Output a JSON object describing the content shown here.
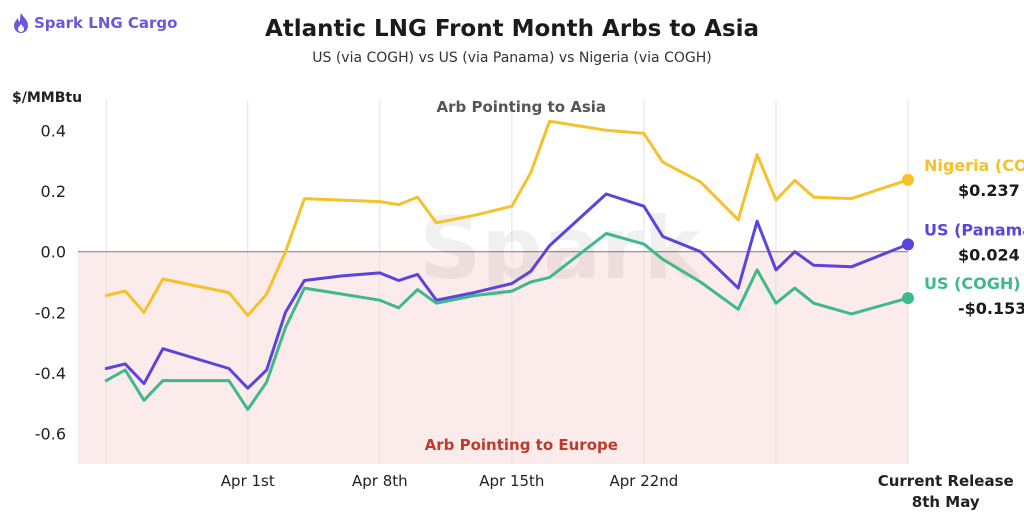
{
  "brand": {
    "name": "Spark LNG Cargo",
    "watermark": "Spark"
  },
  "chart_data": {
    "type": "line",
    "title": "Atlantic LNG Front Month Arbs to Asia",
    "subtitle": "US (via COGH) vs US (via Panama) vs Nigeria (via COGH)",
    "ylabel": "$/MMBtu",
    "ylim": [
      -0.7,
      0.5
    ],
    "yticks": [
      "0.4",
      "0.2",
      "0.0",
      "-0.2",
      "-0.4",
      "-0.6"
    ],
    "ytick_values": [
      0.4,
      0.2,
      0.0,
      -0.2,
      -0.4,
      -0.6
    ],
    "xlim": [
      -9,
      35
    ],
    "xtick_labels": [
      {
        "x": 0,
        "label": "Apr 1st"
      },
      {
        "x": 7,
        "label": "Apr 8th"
      },
      {
        "x": 14,
        "label": "Apr 15th"
      },
      {
        "x": 21,
        "label": "Apr 22nd"
      },
      {
        "x": 37,
        "label": "Current Release\n8th May"
      }
    ],
    "vgrid_x": [
      -7.5,
      0,
      7,
      14,
      21,
      28,
      35
    ],
    "grid": "vertical",
    "annotations": {
      "top": "Arb Pointing to Asia",
      "bottom": "Arb Pointing to Europe"
    },
    "series": [
      {
        "name": "Nigeria (COGH)",
        "color": "#f6c12b",
        "end_label": "$0.237",
        "x": [
          -7.5,
          -6.5,
          -5.5,
          -4.5,
          -1,
          0,
          1,
          2,
          3,
          5,
          7,
          8,
          9,
          10,
          12,
          14,
          15,
          16,
          19,
          21,
          22,
          24,
          26,
          27,
          28,
          29,
          30,
          32,
          35
        ],
        "values": [
          -0.145,
          -0.13,
          -0.2,
          -0.09,
          -0.135,
          -0.21,
          -0.14,
          0.0,
          0.175,
          0.17,
          0.165,
          0.155,
          0.18,
          0.095,
          0.12,
          0.15,
          0.26,
          0.43,
          0.4,
          0.39,
          0.295,
          0.23,
          0.105,
          0.32,
          0.17,
          0.235,
          0.18,
          0.175,
          0.237
        ]
      },
      {
        "name": "US (Panama)",
        "color": "#5b44dc",
        "end_label": "$0.024",
        "x": [
          -7.5,
          -6.5,
          -5.5,
          -4.5,
          -1,
          0,
          1,
          2,
          3,
          5,
          7,
          8,
          9,
          10,
          12,
          14,
          15,
          16,
          19,
          21,
          22,
          24,
          26,
          27,
          28,
          29,
          30,
          32,
          35
        ],
        "values": [
          -0.385,
          -0.37,
          -0.435,
          -0.32,
          -0.385,
          -0.45,
          -0.39,
          -0.2,
          -0.095,
          -0.08,
          -0.07,
          -0.095,
          -0.075,
          -0.16,
          -0.135,
          -0.105,
          -0.065,
          0.02,
          0.19,
          0.15,
          0.05,
          0.0,
          -0.12,
          0.1,
          -0.06,
          0.0,
          -0.045,
          -0.05,
          0.024
        ]
      },
      {
        "name": "US (COGH)",
        "color": "#3eb88c",
        "end_label": "-$0.153",
        "x": [
          -7.5,
          -6.5,
          -5.5,
          -4.5,
          -1,
          0,
          1,
          2,
          3,
          5,
          7,
          8,
          9,
          10,
          12,
          14,
          15,
          16,
          19,
          21,
          22,
          24,
          26,
          27,
          28,
          29,
          30,
          32,
          35
        ],
        "values": [
          -0.425,
          -0.39,
          -0.49,
          -0.425,
          -0.425,
          -0.52,
          -0.43,
          -0.25,
          -0.12,
          -0.14,
          -0.16,
          -0.185,
          -0.125,
          -0.17,
          -0.145,
          -0.13,
          -0.1,
          -0.085,
          0.06,
          0.025,
          -0.025,
          -0.1,
          -0.19,
          -0.06,
          -0.17,
          -0.12,
          -0.17,
          -0.205,
          -0.153
        ]
      }
    ]
  }
}
